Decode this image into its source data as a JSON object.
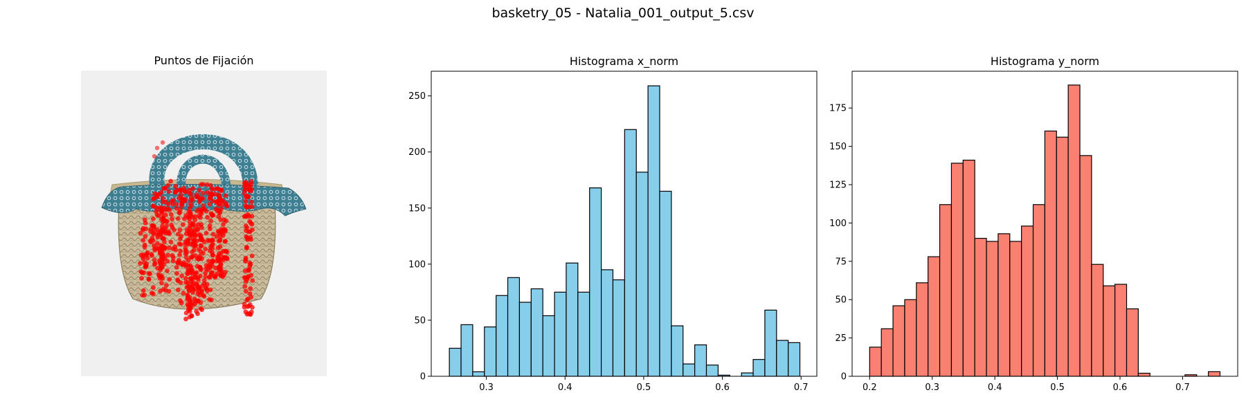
{
  "figure_title": "basketry_05 - Natalia_001_output_5.csv",
  "colors": {
    "x_hist": "#87ceeb",
    "y_hist": "#fa8072",
    "fixation": "#ff0000",
    "image_bg": "#f0f0f0"
  },
  "chart_data": [
    {
      "type": "scatter",
      "title": "Puntos de Fijación",
      "background_image": "basket-icon",
      "note": "red fixation points overlaid on a woven basket with blue patterned fabric"
    },
    {
      "type": "bar",
      "title": "Histograma x_norm",
      "xlabel": "",
      "ylabel": "",
      "bin_start": 0.253,
      "bin_width": 0.01485,
      "values": [
        25,
        46,
        4,
        44,
        72,
        88,
        66,
        78,
        54,
        75,
        101,
        75,
        168,
        95,
        86,
        220,
        182,
        259,
        165,
        45,
        11,
        28,
        10,
        1,
        0,
        3,
        15,
        59,
        32,
        30
      ],
      "xlim": [
        0.23,
        0.72
      ],
      "ylim": [
        0,
        272
      ],
      "xticks": [
        0.3,
        0.4,
        0.5,
        0.6,
        0.7
      ],
      "yticks": [
        0,
        50,
        100,
        150,
        200,
        250
      ],
      "xtick_labels": [
        "0.3",
        "0.4",
        "0.5",
        "0.6",
        "0.7"
      ],
      "ytick_labels": [
        "0",
        "50",
        "100",
        "150",
        "200",
        "250"
      ]
    },
    {
      "type": "bar",
      "title": "Histograma y_norm",
      "xlabel": "",
      "ylabel": "",
      "bin_start": 0.2,
      "bin_width": 0.01866,
      "values": [
        19,
        31,
        46,
        50,
        61,
        78,
        112,
        139,
        141,
        90,
        88,
        93,
        88,
        98,
        112,
        160,
        156,
        190,
        144,
        73,
        59,
        60,
        44,
        2,
        0,
        0,
        0,
        1,
        0,
        3
      ],
      "xlim": [
        0.172,
        0.788
      ],
      "ylim": [
        0,
        199
      ],
      "xticks": [
        0.2,
        0.3,
        0.4,
        0.5,
        0.6,
        0.7
      ],
      "yticks": [
        0,
        25,
        50,
        75,
        100,
        125,
        150,
        175
      ],
      "xtick_labels": [
        "0.2",
        "0.3",
        "0.4",
        "0.5",
        "0.6",
        "0.7"
      ],
      "ytick_labels": [
        "0",
        "25",
        "50",
        "75",
        "100",
        "125",
        "150",
        "175"
      ]
    }
  ]
}
